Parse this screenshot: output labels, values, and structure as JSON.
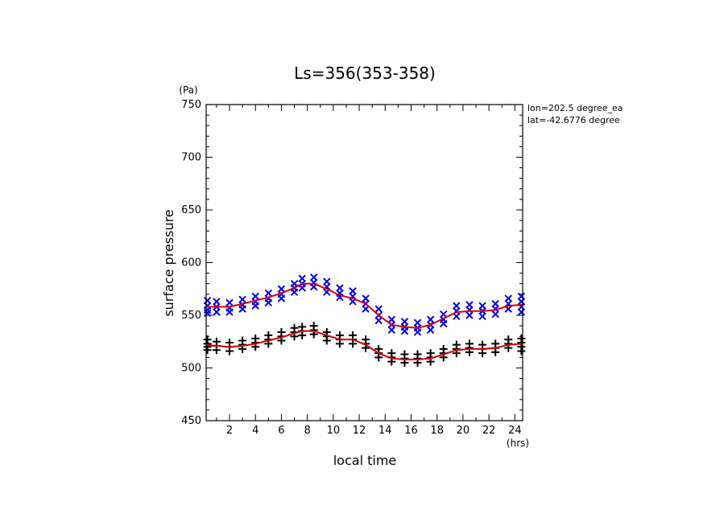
{
  "chart_data": {
    "type": "scatter",
    "title": "Ls=356(353-358)",
    "xlabel": "local time",
    "ylabel": "surface pressure",
    "x_unit": "(hrs)",
    "y_unit": "(Pa)",
    "xlim": [
      0.2,
      24.6
    ],
    "ylim": [
      450,
      750
    ],
    "xticks": [
      2,
      4,
      6,
      8,
      10,
      12,
      14,
      16,
      18,
      20,
      22,
      24
    ],
    "yticks": [
      450,
      500,
      550,
      600,
      650,
      700,
      750
    ],
    "info_lines": [
      "lon=202.5 degree_ea",
      "lat=-42.6776 degree"
    ],
    "fit_color": "#dd0000",
    "series": [
      {
        "marker": "x",
        "color": "#0000ee",
        "x": [
          0.3,
          0.3,
          0.3,
          0.3,
          1.0,
          1.0,
          1.0,
          2.0,
          2.0,
          2.0,
          3.0,
          3.0,
          3.0,
          4.0,
          4.0,
          4.0,
          5.0,
          5.0,
          5.0,
          6.0,
          6.0,
          6.0,
          7.0,
          7.0,
          7.0,
          7.6,
          7.6,
          7.6,
          8.5,
          8.5,
          8.5,
          9.5,
          9.5,
          9.5,
          10.5,
          10.5,
          10.5,
          11.5,
          11.5,
          11.5,
          12.5,
          12.5,
          12.5,
          13.5,
          13.5,
          13.5,
          14.5,
          14.5,
          14.5,
          15.5,
          15.5,
          15.5,
          16.5,
          16.5,
          16.5,
          17.5,
          17.5,
          17.5,
          18.5,
          18.5,
          18.5,
          19.5,
          19.5,
          19.5,
          20.5,
          20.5,
          20.5,
          21.5,
          21.5,
          21.5,
          22.5,
          22.5,
          22.5,
          23.5,
          23.5,
          23.5,
          24.5,
          24.5,
          24.5,
          24.5
        ],
        "y": [
          564,
          559,
          555,
          552,
          563,
          558,
          553,
          562,
          557,
          553,
          565,
          560,
          556,
          568,
          563,
          559,
          571,
          566,
          562,
          575,
          570,
          566,
          580,
          576,
          572,
          585,
          580,
          576,
          586,
          581,
          577,
          582,
          577,
          572,
          576,
          571,
          567,
          573,
          568,
          563,
          566,
          561,
          556,
          556,
          550,
          545,
          546,
          541,
          536,
          544,
          539,
          535,
          543,
          538,
          534,
          546,
          541,
          536,
          551,
          546,
          542,
          559,
          554,
          549,
          560,
          555,
          550,
          559,
          554,
          549,
          561,
          556,
          551,
          566,
          561,
          556,
          568,
          563,
          558,
          553
        ]
      },
      {
        "marker": "+",
        "color": "#000000",
        "x": [
          0.3,
          0.3,
          0.3,
          0.3,
          1.0,
          1.0,
          1.0,
          2.0,
          2.0,
          2.0,
          3.0,
          3.0,
          3.0,
          4.0,
          4.0,
          4.0,
          5.0,
          5.0,
          5.0,
          6.0,
          6.0,
          6.0,
          7.0,
          7.0,
          7.0,
          7.6,
          7.6,
          7.6,
          8.5,
          8.5,
          8.5,
          9.5,
          9.5,
          9.5,
          10.5,
          10.5,
          10.5,
          11.5,
          11.5,
          11.5,
          12.5,
          12.5,
          12.5,
          13.5,
          13.5,
          13.5,
          14.5,
          14.5,
          14.5,
          15.5,
          15.5,
          15.5,
          16.5,
          16.5,
          16.5,
          17.5,
          17.5,
          17.5,
          18.5,
          18.5,
          18.5,
          19.5,
          19.5,
          19.5,
          20.5,
          20.5,
          20.5,
          21.5,
          21.5,
          21.5,
          22.5,
          22.5,
          22.5,
          23.5,
          23.5,
          23.5,
          24.5,
          24.5,
          24.5,
          24.5
        ],
        "y": [
          527,
          523,
          520,
          517,
          525,
          521,
          517,
          524,
          520,
          516,
          526,
          522,
          518,
          528,
          524,
          520,
          531,
          527,
          523,
          534,
          530,
          526,
          538,
          534,
          530,
          539,
          535,
          531,
          540,
          536,
          532,
          534,
          530,
          526,
          531,
          527,
          523,
          531,
          527,
          523,
          527,
          523,
          519,
          518,
          514,
          510,
          514,
          510,
          506,
          513,
          509,
          505,
          513,
          509,
          505,
          514,
          510,
          506,
          518,
          514,
          510,
          522,
          518,
          514,
          523,
          519,
          515,
          522,
          518,
          514,
          523,
          519,
          515,
          527,
          523,
          519,
          528,
          524,
          520,
          516
        ]
      }
    ],
    "fits": [
      {
        "x": [
          0.2,
          1,
          2,
          3,
          4,
          5,
          6,
          7,
          7.6,
          8.5,
          9.5,
          10.5,
          11.5,
          12.5,
          13.5,
          14.5,
          15.5,
          16.5,
          17.5,
          18.5,
          19.5,
          20.5,
          21.5,
          22.5,
          23.5,
          24.6
        ],
        "y": [
          558,
          558,
          558,
          561,
          564,
          567,
          571,
          576,
          580,
          580,
          575,
          569,
          566,
          561,
          550,
          541,
          539,
          538,
          541,
          547,
          553,
          554,
          554,
          555,
          559,
          560
        ]
      },
      {
        "x": [
          0.2,
          1,
          2,
          3,
          4,
          5,
          6,
          7,
          7.6,
          8.5,
          9.5,
          10.5,
          11.5,
          12.5,
          13.5,
          14.5,
          15.5,
          16.5,
          17.5,
          18.5,
          19.5,
          20.5,
          21.5,
          22.5,
          23.5,
          24.6
        ],
        "y": [
          522,
          521,
          520,
          521,
          523,
          526,
          529,
          533,
          535,
          535,
          531,
          527,
          527,
          522,
          514,
          509,
          508,
          508,
          509,
          513,
          517,
          518,
          518,
          519,
          522,
          523
        ]
      }
    ]
  }
}
